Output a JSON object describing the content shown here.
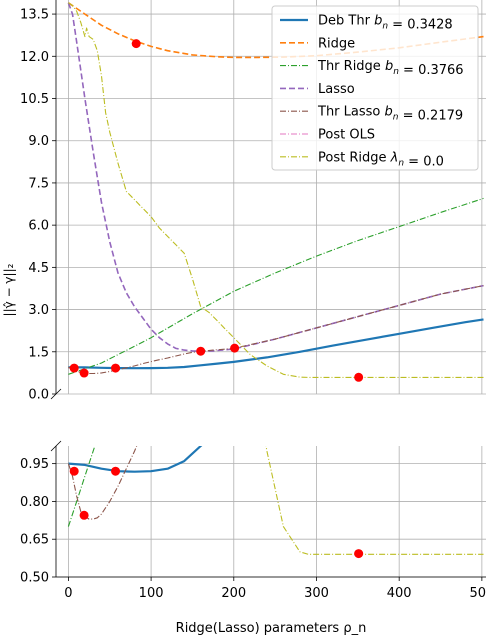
{
  "chart_data": {
    "type": "line",
    "xlabel": "Ridge(Lasso) parameters ρ_n",
    "ylabel": "||γ̂ − γ||₂",
    "grid": true,
    "legend_position": "top-right",
    "broken_y_axis": true,
    "xlim": [
      -15,
      505
    ],
    "xticks": [
      "0",
      "100",
      "200",
      "300",
      "400",
      "500"
    ],
    "panels": [
      {
        "name": "top",
        "ylim": [
          0.0,
          14.0
        ],
        "yticks": [
          "0.0",
          "1.5",
          "3.0",
          "4.5",
          "6.0",
          "7.5",
          "9.0",
          "10.5",
          "12.0",
          "13.5"
        ]
      },
      {
        "name": "bottom",
        "ylim": [
          0.5,
          1.02
        ],
        "yticks": [
          "0.50",
          "0.65",
          "0.80",
          "0.95"
        ]
      }
    ],
    "series": [
      {
        "name": "Deb Thr $b_n$ = 0.3428",
        "color": "#1f77b4",
        "style": "solid",
        "width": 2.2,
        "x": [
          0,
          20,
          40,
          60,
          80,
          100,
          120,
          140,
          160,
          180,
          200,
          240,
          280,
          320,
          360,
          400,
          440,
          480,
          502
        ],
        "y": [
          0.95,
          0.945,
          0.93,
          0.92,
          0.918,
          0.92,
          0.93,
          0.96,
          1.02,
          1.08,
          1.14,
          1.3,
          1.5,
          1.72,
          1.93,
          2.14,
          2.35,
          2.55,
          2.65
        ]
      },
      {
        "name": "Ridge",
        "color": "#ff7f0e",
        "style": "dashed",
        "width": 1.6,
        "x": [
          0,
          20,
          40,
          60,
          80,
          100,
          120,
          150,
          180,
          200,
          230,
          260,
          300,
          350,
          400,
          450,
          502
        ],
        "y": [
          13.9,
          13.5,
          13.1,
          12.8,
          12.55,
          12.35,
          12.2,
          12.05,
          11.98,
          11.96,
          11.96,
          11.97,
          12.02,
          12.15,
          12.3,
          12.5,
          12.7
        ]
      },
      {
        "name": "Thr Ridge $b_n$ = 0.3766",
        "color": "#2ca02c",
        "style": "dashdot",
        "width": 1.1,
        "x": [
          0,
          10,
          20,
          40,
          60,
          80,
          100,
          150,
          200,
          250,
          300,
          350,
          400,
          450,
          502
        ],
        "y": [
          0.7,
          0.8,
          0.9,
          1.1,
          1.4,
          1.7,
          2.0,
          2.85,
          3.65,
          4.3,
          4.9,
          5.45,
          5.95,
          6.45,
          6.95
        ]
      },
      {
        "name": "Lasso",
        "color": "#9467bd",
        "style": "dashed",
        "width": 1.6,
        "x": [
          0,
          5,
          10,
          20,
          30,
          40,
          50,
          60,
          70,
          80,
          90,
          100,
          110,
          120,
          130,
          140,
          150,
          160,
          175,
          200,
          250,
          300,
          350,
          400,
          450,
          502
        ],
        "y": [
          13.9,
          13.5,
          12.5,
          10.5,
          8.6,
          6.8,
          5.4,
          4.3,
          3.6,
          3.1,
          2.7,
          2.3,
          2.0,
          1.78,
          1.62,
          1.56,
          1.53,
          1.52,
          1.53,
          1.6,
          1.95,
          2.35,
          2.75,
          3.15,
          3.55,
          3.85
        ]
      },
      {
        "name": "Thr Lasso $b_n$ = 0.2179",
        "color": "#8c564b",
        "style": "dashdot",
        "width": 1.1,
        "x": [
          0,
          5,
          10,
          15,
          20,
          25,
          30,
          35,
          40,
          50,
          60,
          70,
          80,
          90,
          100,
          110,
          120,
          130,
          140,
          150,
          175,
          200,
          250,
          300,
          350,
          400,
          450,
          502
        ],
        "y": [
          0.95,
          0.9,
          0.82,
          0.76,
          0.74,
          0.73,
          0.73,
          0.735,
          0.75,
          0.8,
          0.86,
          0.93,
          1.0,
          1.08,
          1.15,
          1.22,
          1.28,
          1.35,
          1.42,
          1.48,
          1.56,
          1.62,
          1.95,
          2.35,
          2.75,
          3.15,
          3.55,
          3.85
        ]
      },
      {
        "name": "Post OLS",
        "color": "#e377c2",
        "style": "dashdot",
        "width": 1.1,
        "x": [],
        "y": []
      },
      {
        "name": "Post Ridge $\\lambda_n$ = 0.0",
        "color": "#bcbd22",
        "style": "dashdot",
        "width": 1.1,
        "x": [
          0,
          5,
          10,
          15,
          18,
          20,
          22,
          25,
          30,
          35,
          40,
          45,
          50,
          60,
          70,
          80,
          90,
          100,
          110,
          120,
          130,
          140,
          150,
          160,
          170,
          180,
          190,
          200,
          210,
          220,
          240,
          260,
          280,
          290,
          300,
          350,
          400,
          450,
          502
        ],
        "y": [
          13.9,
          13.8,
          13.6,
          13.2,
          12.9,
          12.7,
          13.0,
          12.7,
          12.6,
          12.2,
          11.3,
          10.0,
          9.3,
          8.2,
          7.2,
          6.9,
          6.6,
          6.3,
          5.9,
          5.6,
          5.3,
          5.0,
          4.1,
          3.1,
          2.9,
          2.6,
          2.3,
          2.0,
          1.7,
          1.4,
          1.0,
          0.7,
          0.6,
          0.59,
          0.59,
          0.59,
          0.59,
          0.59,
          0.59
        ]
      }
    ],
    "markers": {
      "color": "#ff0000",
      "points": [
        {
          "series": "Deb Thr $b_n$ = 0.3428",
          "x": 57,
          "y": 0.92
        },
        {
          "series": "Ridge",
          "x": 82,
          "y": 12.45
        },
        {
          "series": "Lasso",
          "x": 160,
          "y": 1.52
        },
        {
          "series": "Thr Lasso $b_n$ = 0.2179",
          "x": 7,
          "y": 0.92
        },
        {
          "series": "Thr Lasso $b_n$ = 0.2179",
          "x": 19,
          "y": 0.745
        },
        {
          "series": "Thr Lasso $b_n$ = 0.2179",
          "x": 201,
          "y": 1.63
        },
        {
          "series": "Post Ridge $\\lambda_n$ = 0.0",
          "x": 351,
          "y": 0.593
        }
      ]
    }
  }
}
